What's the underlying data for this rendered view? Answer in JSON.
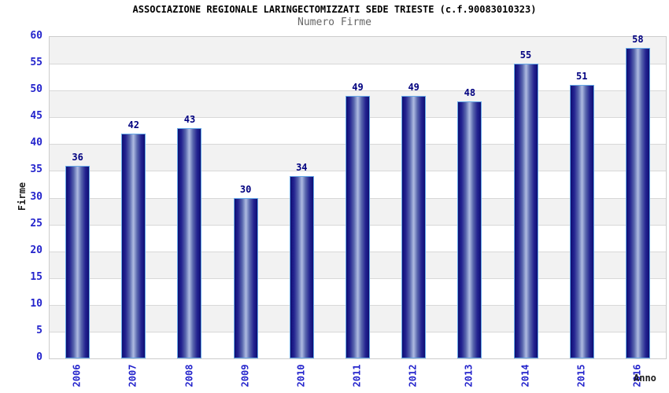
{
  "chart_data": {
    "type": "bar",
    "title": "ASSOCIAZIONE REGIONALE LARINGECTOMIZZATI SEDE TRIESTE (c.f.90083010323)",
    "subtitle": "Numero Firme",
    "xlabel": "Anno",
    "ylabel": "Firme",
    "categories": [
      "2006",
      "2007",
      "2008",
      "2009",
      "2010",
      "2011",
      "2012",
      "2013",
      "2014",
      "2015",
      "2016"
    ],
    "values": [
      36,
      42,
      43,
      30,
      34,
      49,
      49,
      48,
      55,
      51,
      58
    ],
    "ylim": [
      0,
      60
    ],
    "ytick_step": 5,
    "grid": true,
    "legend": "none",
    "band_fill_alternating": true
  },
  "colors": {
    "bar_dark": "#0e0e6e",
    "bar_light_center": "#aebadf",
    "bar_border": "#66a9e8",
    "tick_label": "#2424cc",
    "value_label": "#000080",
    "band_gray": "#f2f2f2",
    "gridline": "#d8d8d8",
    "plot_border": "#cccccc",
    "title": "#000000",
    "subtitle": "#666666",
    "axis_title": "#1a1a1a"
  }
}
